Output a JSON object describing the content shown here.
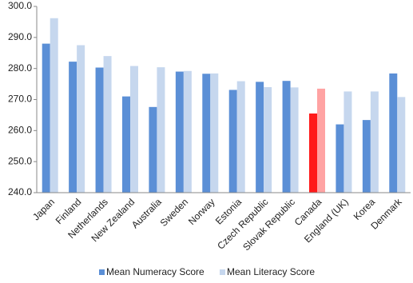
{
  "chart_data": {
    "type": "bar",
    "categories": [
      "Japan",
      "Finland",
      "Netherlands",
      "New Zealand",
      "Australia",
      "Sweden",
      "Norway",
      "Estonia",
      "Czech Republic",
      "Slovak Republic",
      "Canada",
      "England (UK)",
      "Korea",
      "Denmark"
    ],
    "series": [
      {
        "name": "Mean Numeracy Score",
        "color": "#5b8fd6",
        "colors": [
          "#5b8fd6",
          "#5b8fd6",
          "#5b8fd6",
          "#5b8fd6",
          "#5b8fd6",
          "#5b8fd6",
          "#5b8fd6",
          "#5b8fd6",
          "#5b8fd6",
          "#5b8fd6",
          "#ff1a1a",
          "#5b8fd6",
          "#5b8fd6",
          "#5b8fd6"
        ],
        "values": [
          288.0,
          282.2,
          280.3,
          271.0,
          267.6,
          279.0,
          278.3,
          273.1,
          275.7,
          276.0,
          265.5,
          262.0,
          263.4,
          278.4
        ]
      },
      {
        "name": "Mean Literacy Score",
        "color": "#c6d7ee",
        "colors": [
          "#c6d7ee",
          "#c6d7ee",
          "#c6d7ee",
          "#c6d7ee",
          "#c6d7ee",
          "#c6d7ee",
          "#c6d7ee",
          "#c6d7ee",
          "#c6d7ee",
          "#c6d7ee",
          "#ffa3a3",
          "#c6d7ee",
          "#c6d7ee",
          "#c6d7ee"
        ],
        "values": [
          296.2,
          287.5,
          284.0,
          280.8,
          280.4,
          279.2,
          278.4,
          275.9,
          274.0,
          273.9,
          273.5,
          272.6,
          272.6,
          270.8
        ]
      }
    ],
    "ylim": [
      240,
      300
    ],
    "yticks": [
      {
        "value": 240,
        "label": "240.0"
      },
      {
        "value": 250,
        "label": "250.0"
      },
      {
        "value": 260,
        "label": "260.0"
      },
      {
        "value": 270,
        "label": "270.0"
      },
      {
        "value": 280,
        "label": "280.0"
      },
      {
        "value": 290,
        "label": "290.0"
      },
      {
        "value": 300,
        "label": "300.0"
      }
    ],
    "grid": false,
    "legend": "bottom"
  }
}
